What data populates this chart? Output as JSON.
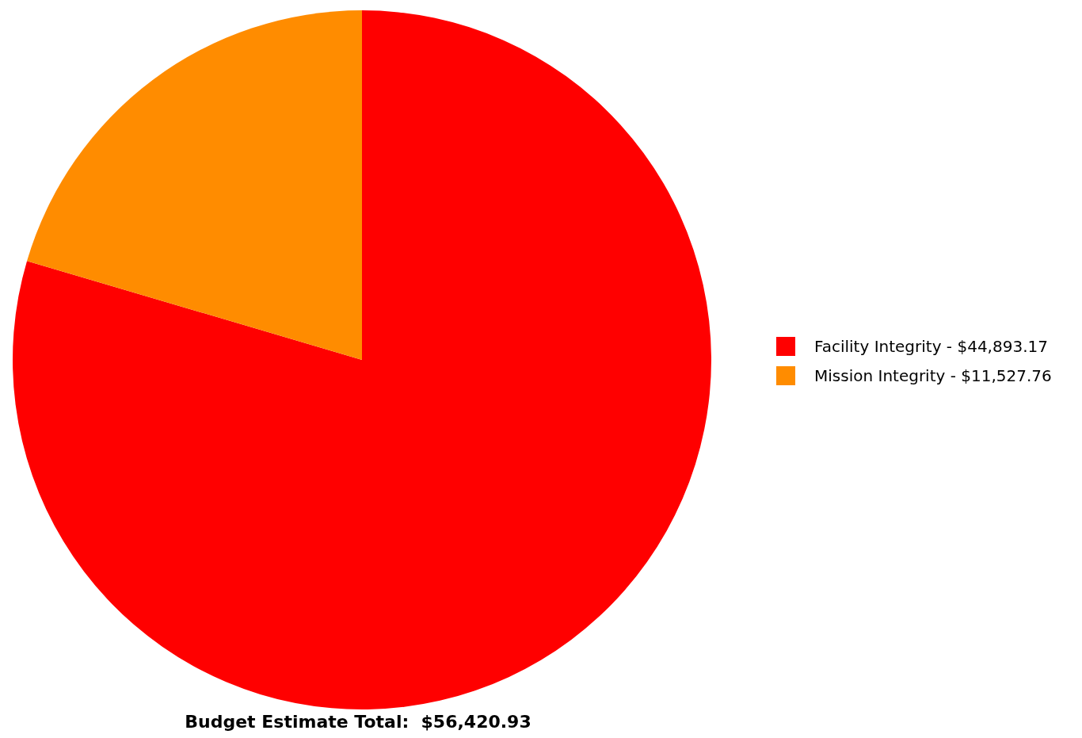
{
  "chart_data": {
    "type": "pie",
    "categories": [
      "Facility Integrity",
      "Mission Integrity"
    ],
    "values": [
      44893.17,
      11527.76
    ],
    "value_labels": [
      "$44,893.17",
      "$11,527.76"
    ],
    "colors": [
      "#ff0000",
      "#ff8c00"
    ],
    "legend": "right",
    "annotations": [
      "Budget Estimate Total:  $56,420.93"
    ]
  }
}
